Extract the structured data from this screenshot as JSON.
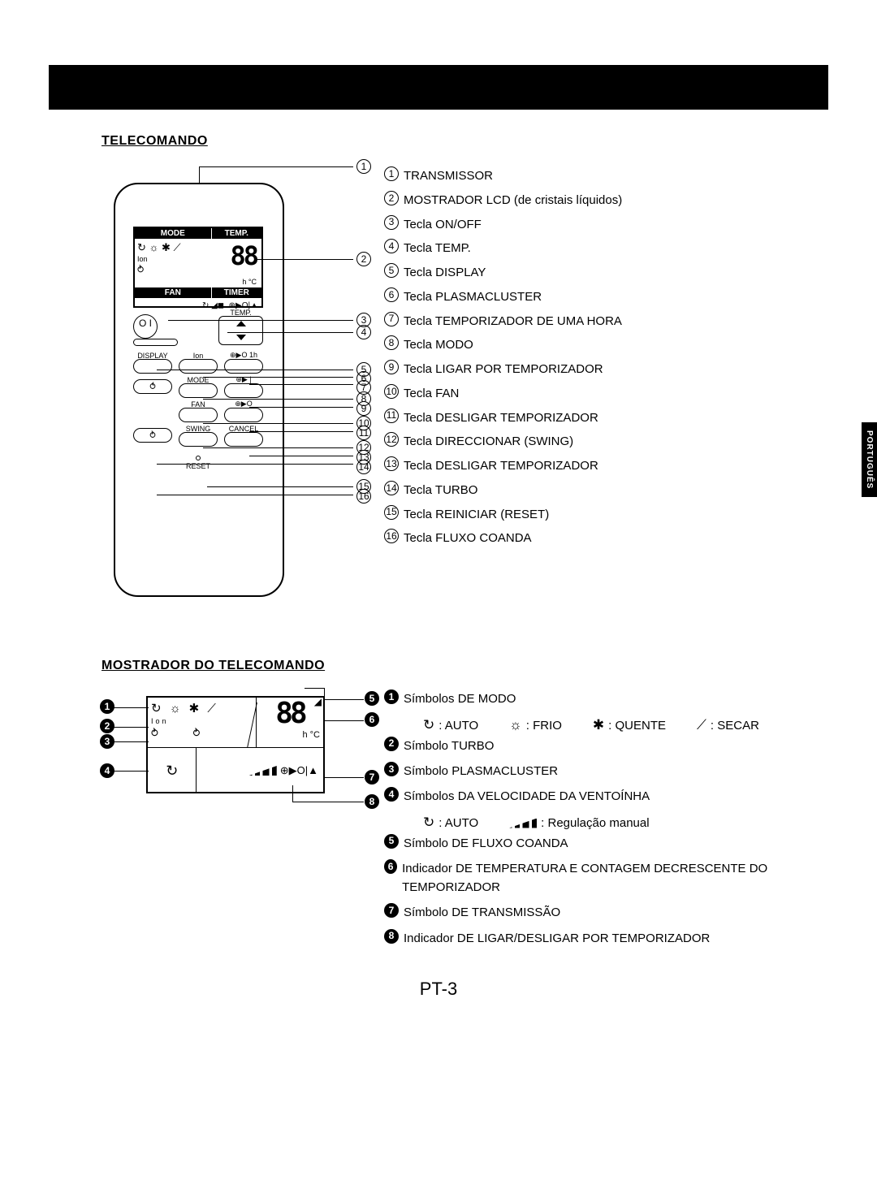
{
  "page": {
    "number": "PT-3",
    "side_tab": "PORTUGUÊS"
  },
  "section1": {
    "title": "TELECOMANDO",
    "lcd": {
      "header_left": "MODE",
      "header_right": "TEMP.",
      "temp_digits": "88",
      "unit_line": "h   °C",
      "footer_left": "FAN",
      "footer_right": "TIMER",
      "row2_symbols": "⊕▶O|▲"
    },
    "buttons": {
      "onoff": "O I",
      "temp_label": "TEMP.",
      "display": "DISPLAY",
      "ion": "Ion",
      "one_hour": "⊕▶O 1h",
      "mode": "MODE",
      "timer_on": "⊕▶ |",
      "fan": "FAN",
      "timer_off": "⊕▶O",
      "swing": "SWING",
      "cancel": "CANCEL",
      "reset": "RESET"
    },
    "callouts": [
      {
        "n": "1",
        "label": "TRANSMISSOR"
      },
      {
        "n": "2",
        "label": "MOSTRADOR LCD (de cristais líquidos)"
      },
      {
        "n": "3",
        "label": "Tecla ON/OFF"
      },
      {
        "n": "4",
        "label": "Tecla TEMP."
      },
      {
        "n": "5",
        "label": "Tecla DISPLAY"
      },
      {
        "n": "6",
        "label": "Tecla PLASMACLUSTER"
      },
      {
        "n": "7",
        "label": "Tecla TEMPORIZADOR DE UMA HORA"
      },
      {
        "n": "8",
        "label": "Tecla MODO"
      },
      {
        "n": "9",
        "label": "Tecla LIGAR POR TEMPORIZADOR"
      },
      {
        "n": "10",
        "label": "Tecla FAN"
      },
      {
        "n": "11",
        "label": "Tecla DESLIGAR TEMPORIZADOR"
      },
      {
        "n": "12",
        "label": "Tecla DIRECCIONAR (SWING)"
      },
      {
        "n": "13",
        "label": "Tecla DESLIGAR TEMPORIZADOR"
      },
      {
        "n": "14",
        "label": "Tecla TURBO"
      },
      {
        "n": "15",
        "label": "Tecla REINICIAR (RESET)"
      },
      {
        "n": "16",
        "label": "Tecla FLUXO COANDA"
      }
    ]
  },
  "section2": {
    "title": "MOSTRADOR DO TELECOMANDO",
    "lcd": {
      "mode_icons": "↻ ☼ ✱ ⟋",
      "ion_label": "Ion",
      "digits": "88",
      "hc": "h   °C",
      "fan_auto": "↻",
      "right_icons": "⊕▶O|▲"
    },
    "left_nums": [
      "1",
      "2",
      "3",
      "4"
    ],
    "right_nums": [
      "5",
      "6",
      "7",
      "8"
    ],
    "legend": [
      {
        "n": "1",
        "label": "Símbolos DE MODO",
        "sub": [
          {
            "icon": "↻",
            "text": ": AUTO"
          },
          {
            "icon": "☼",
            "text": ": FRIO"
          },
          {
            "icon": "✱",
            "text": ": QUENTE"
          },
          {
            "icon": "⟋",
            "text": ": SECAR"
          }
        ]
      },
      {
        "n": "2",
        "label": "Símbolo TURBO"
      },
      {
        "n": "3",
        "label": "Símbolo PLASMACLUSTER"
      },
      {
        "n": "4",
        "label": "Símbolos DA VELOCIDADE DA VENTOÍNHA",
        "sub2": [
          {
            "icon": "↻",
            "text": ": AUTO"
          },
          {
            "bars": true,
            "text": ": Regulação manual"
          }
        ]
      },
      {
        "n": "5",
        "label": "Símbolo DE FLUXO COANDA"
      },
      {
        "n": "6",
        "label": "Indicador DE TEMPERATURA E CONTAGEM DECRESCENTE DO TEMPORIZADOR"
      },
      {
        "n": "7",
        "label": "Símbolo DE TRANSMISSÃO"
      },
      {
        "n": "8",
        "label": "Indicador DE LIGAR/DESLIGAR POR TEMPORIZADOR"
      }
    ]
  }
}
